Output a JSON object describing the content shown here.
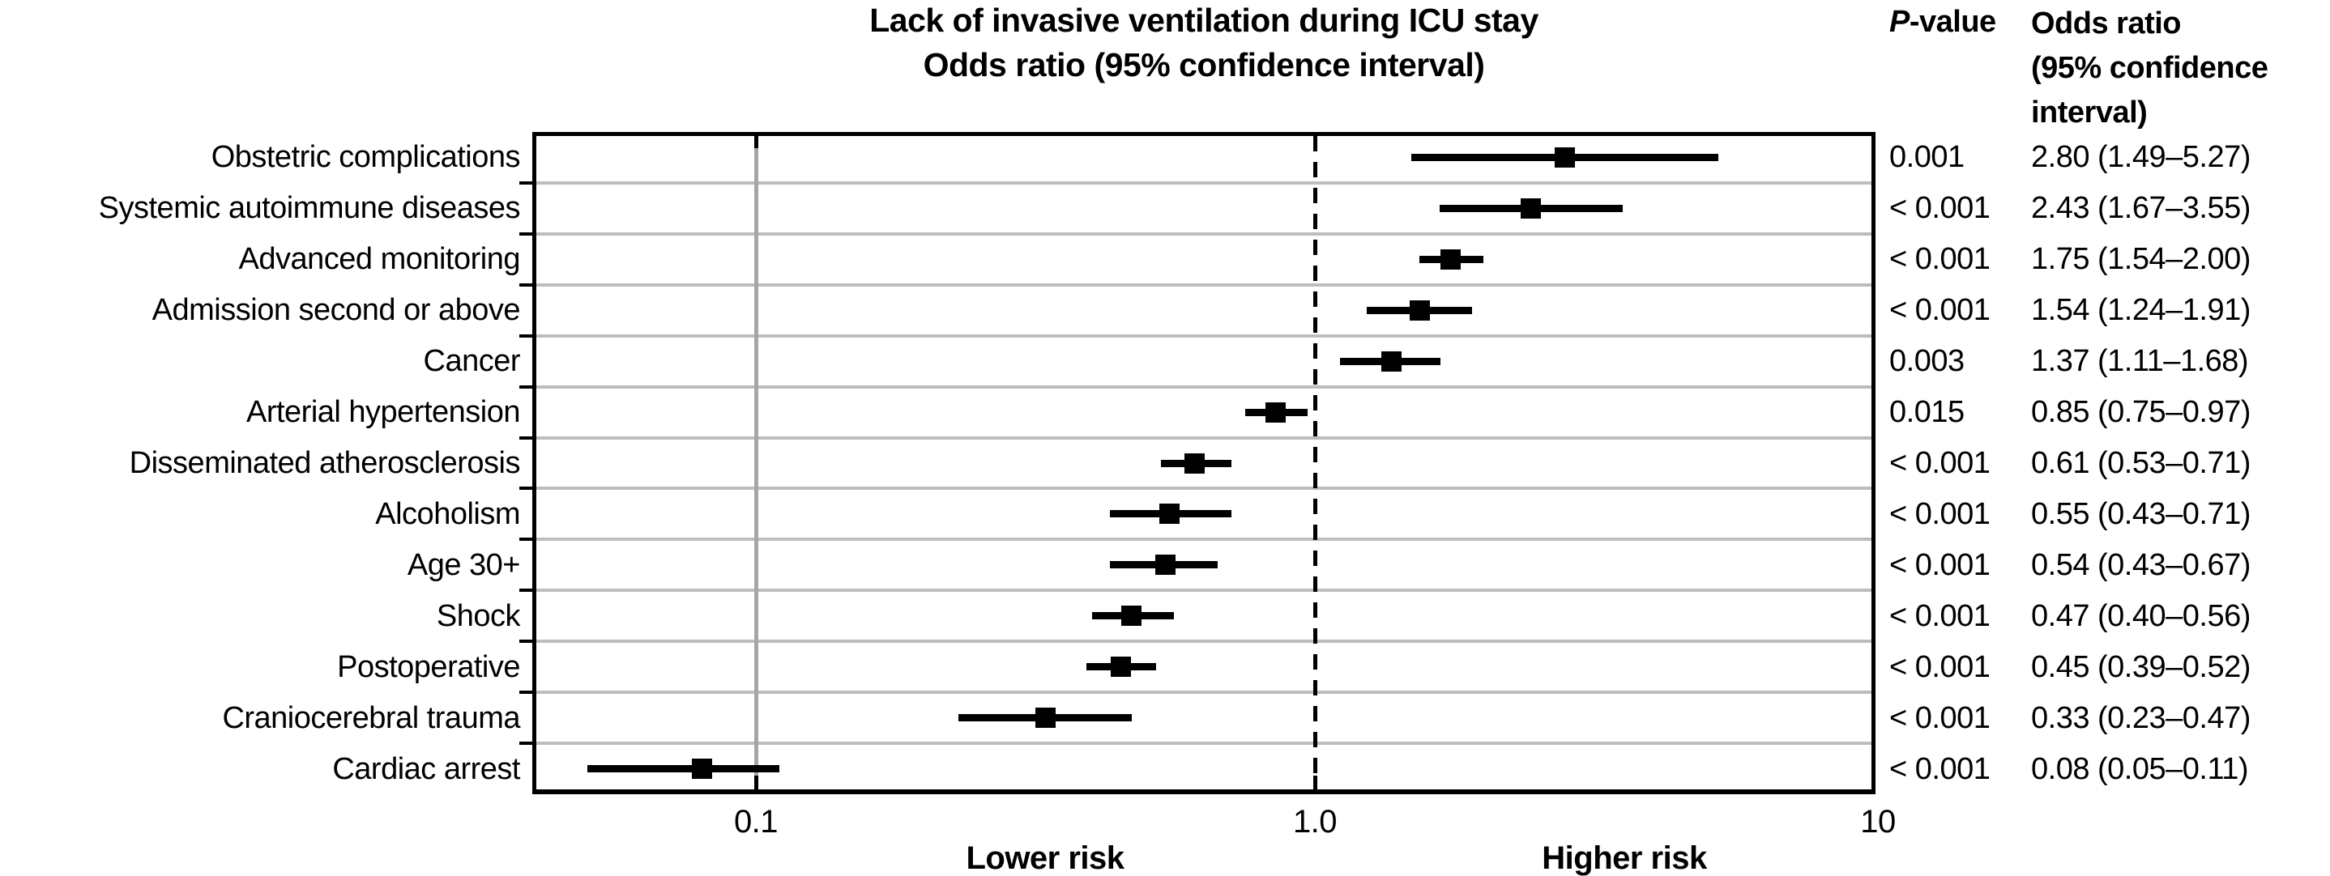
{
  "chart_data": {
    "type": "scatter",
    "variant": "forest-plot",
    "title": "Lack of invasive ventilation during ICU stay",
    "subtitle": "Odds ratio (95% confidence interval)",
    "x_scale": "log10",
    "xlim": [
      0.04,
      10
    ],
    "x_ticks": [
      "0.1",
      "1.0",
      "10"
    ],
    "x_tick_values": [
      0.1,
      1.0,
      10
    ],
    "reference_line_value": 1.0,
    "gray_guide_line_value": 0.1,
    "grid": true,
    "legend_position": "none",
    "axis_annotations": [
      "Lower risk",
      "Higher risk"
    ],
    "rows": [
      {
        "label": "Obstetric complications",
        "p_value": "0.001",
        "or": 2.8,
        "ci_low": 1.49,
        "ci_high": 5.27,
        "or_ci_text": "2.80 (1.49–5.27)"
      },
      {
        "label": "Systemic autoimmune diseases",
        "p_value": "< 0.001",
        "or": 2.43,
        "ci_low": 1.67,
        "ci_high": 3.55,
        "or_ci_text": "2.43 (1.67–3.55)"
      },
      {
        "label": "Advanced monitoring",
        "p_value": "< 0.001",
        "or": 1.75,
        "ci_low": 1.54,
        "ci_high": 2.0,
        "or_ci_text": "1.75 (1.54–2.00)"
      },
      {
        "label": "Admission second or above",
        "p_value": "< 0.001",
        "or": 1.54,
        "ci_low": 1.24,
        "ci_high": 1.91,
        "or_ci_text": "1.54 (1.24–1.91)"
      },
      {
        "label": "Cancer",
        "p_value": "0.003",
        "or": 1.37,
        "ci_low": 1.11,
        "ci_high": 1.68,
        "or_ci_text": "1.37 (1.11–1.68)"
      },
      {
        "label": "Arterial hypertension",
        "p_value": "0.015",
        "or": 0.85,
        "ci_low": 0.75,
        "ci_high": 0.97,
        "or_ci_text": "0.85 (0.75–0.97)"
      },
      {
        "label": "Disseminated atherosclerosis",
        "p_value": "< 0.001",
        "or": 0.61,
        "ci_low": 0.53,
        "ci_high": 0.71,
        "or_ci_text": "0.61 (0.53–0.71)"
      },
      {
        "label": "Alcoholism",
        "p_value": "< 0.001",
        "or": 0.55,
        "ci_low": 0.43,
        "ci_high": 0.71,
        "or_ci_text": "0.55 (0.43–0.71)"
      },
      {
        "label": "Age 30+",
        "p_value": "< 0.001",
        "or": 0.54,
        "ci_low": 0.43,
        "ci_high": 0.67,
        "or_ci_text": "0.54 (0.43–0.67)"
      },
      {
        "label": "Shock",
        "p_value": "< 0.001",
        "or": 0.47,
        "ci_low": 0.4,
        "ci_high": 0.56,
        "or_ci_text": "0.47 (0.40–0.56)"
      },
      {
        "label": "Postoperative",
        "p_value": "< 0.001",
        "or": 0.45,
        "ci_low": 0.39,
        "ci_high": 0.52,
        "or_ci_text": "0.45 (0.39–0.52)"
      },
      {
        "label": "Craniocerebral trauma",
        "p_value": "< 0.001",
        "or": 0.33,
        "ci_low": 0.23,
        "ci_high": 0.47,
        "or_ci_text": "0.33 (0.23–0.47)"
      },
      {
        "label": "Cardiac arrest",
        "p_value": "< 0.001",
        "or": 0.08,
        "ci_low": 0.05,
        "ci_high": 0.11,
        "or_ci_text": "0.08 (0.05–0.11)"
      }
    ]
  },
  "headers": {
    "p_italic": "P",
    "p_rest": "-value",
    "or_line1": "Odds ratio",
    "or_line2": "(95% confidence",
    "or_line3": "interval)"
  },
  "colors": {
    "text": "#000000",
    "gridline": "#bdbdbd",
    "guide_line_gray": "#a6a6a6",
    "reference_line": "#000000",
    "marker": "#000000"
  }
}
